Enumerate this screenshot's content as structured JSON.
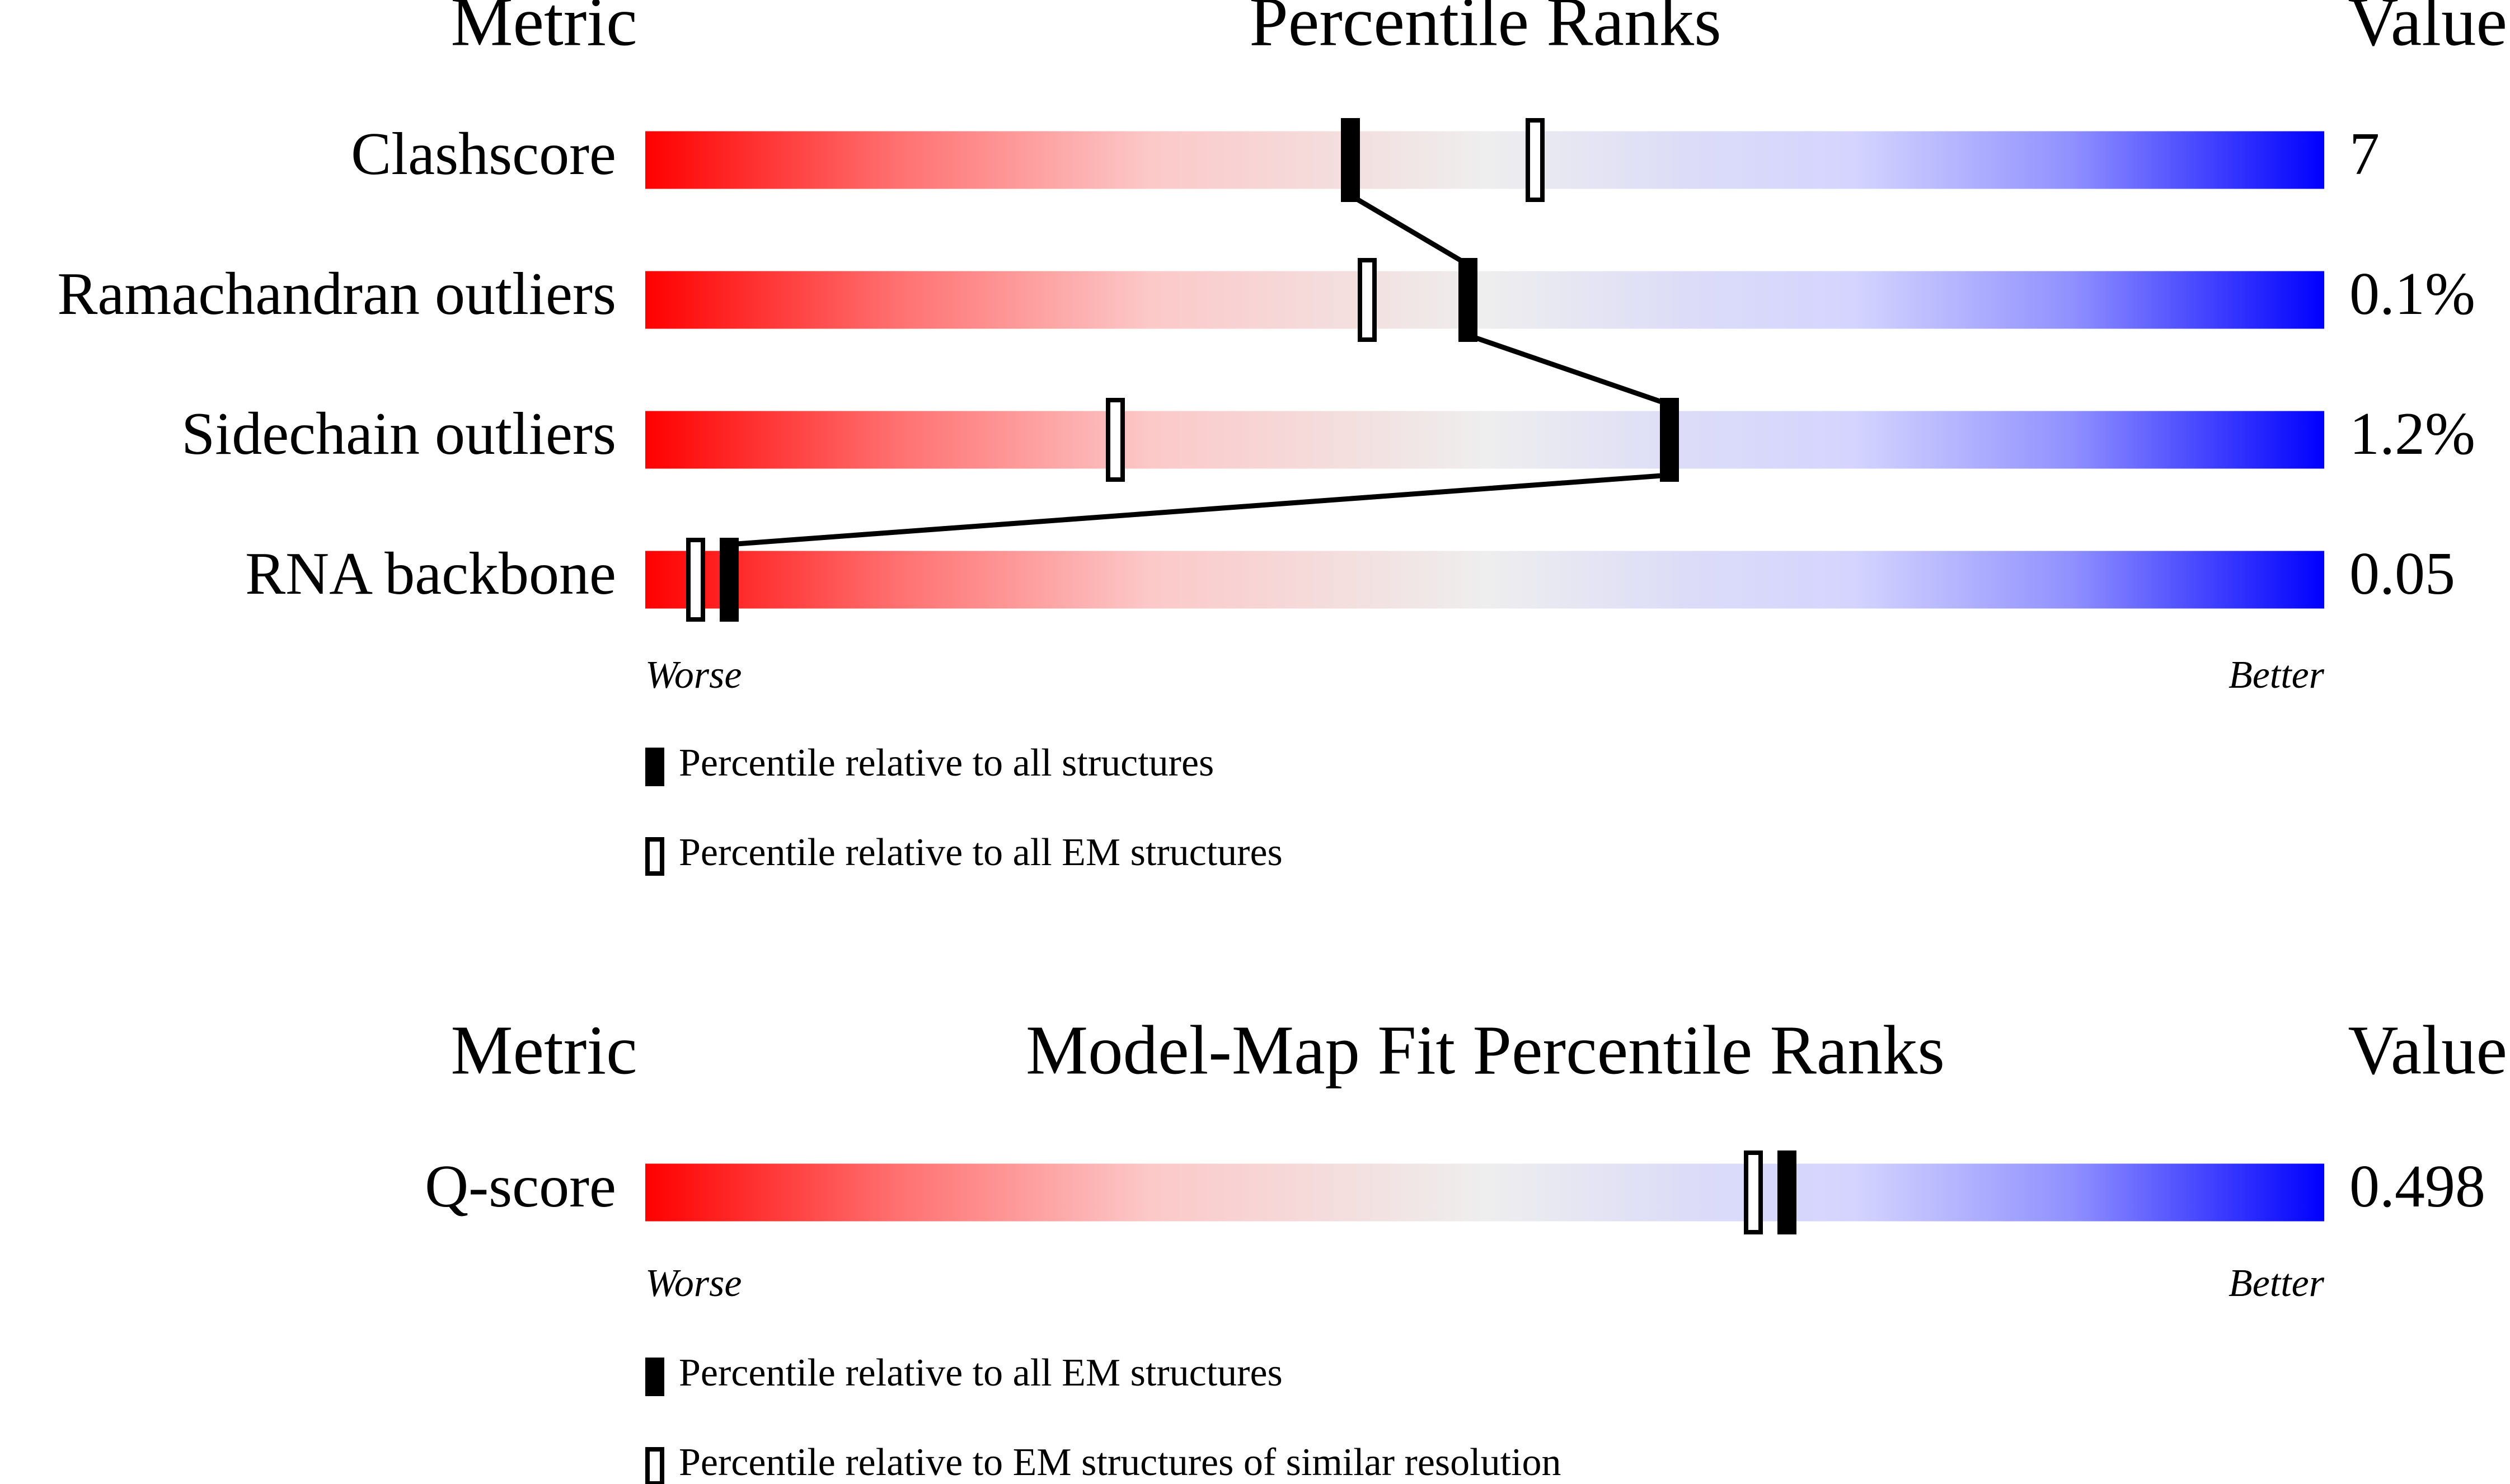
{
  "chart_data": [
    {
      "type": "slider",
      "title": "Percentile Ranks",
      "metric_header": "Metric",
      "value_header": "Value",
      "categories": [
        "Clashscore",
        "Ramachandran outliers",
        "Sidechain outliers",
        "RNA backbone"
      ],
      "metric_values": [
        "7",
        "0.1%",
        "1.2%",
        "0.05"
      ],
      "xlim": [
        0,
        100
      ],
      "low_label": "Worse",
      "high_label": "Better",
      "series": [
        {
          "name": "Percentile relative to all structures",
          "style": "filled",
          "color": "#000000",
          "values": [
            42,
            49,
            61,
            5
          ]
        },
        {
          "name": "Percentile relative to all EM structures",
          "style": "open",
          "color": "#000000",
          "values": [
            53,
            43,
            28,
            3
          ]
        }
      ]
    },
    {
      "type": "slider",
      "title": "Model-Map Fit Percentile Ranks",
      "metric_header": "Metric",
      "value_header": "Value",
      "categories": [
        "Q-score"
      ],
      "metric_values": [
        "0.498"
      ],
      "xlim": [
        0,
        100
      ],
      "low_label": "Worse",
      "high_label": "Better",
      "series": [
        {
          "name": "Percentile relative to all EM structures",
          "style": "filled",
          "color": "#000000",
          "values": [
            68
          ]
        },
        {
          "name": "Percentile relative to EM structures of similar resolution",
          "style": "open",
          "color": "#000000",
          "values": [
            66
          ]
        }
      ]
    }
  ]
}
